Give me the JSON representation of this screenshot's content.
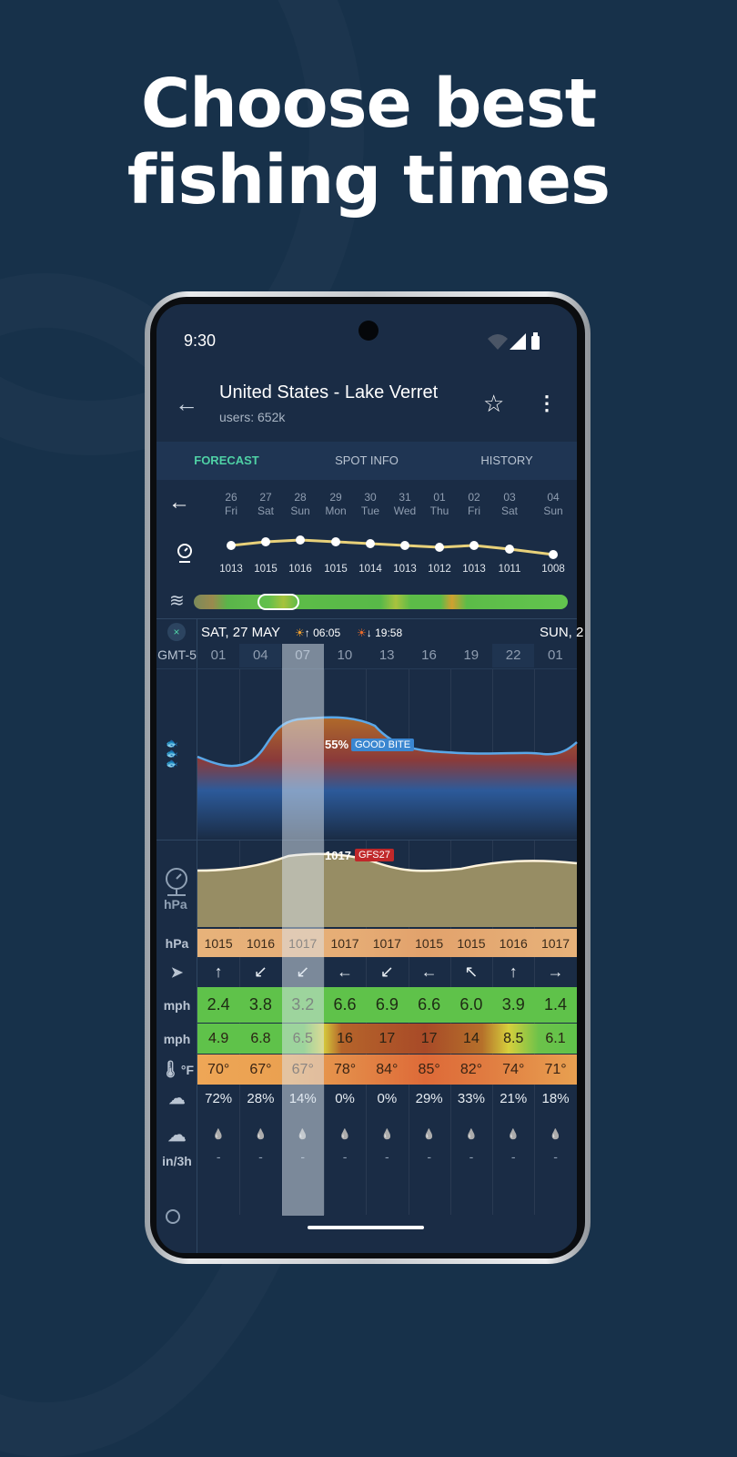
{
  "headline": [
    "Choose best",
    "fishing times"
  ],
  "status_bar": {
    "time": "9:30"
  },
  "header": {
    "title": "United States - Lake Verret",
    "subtitle": "users: 652k"
  },
  "tabs": [
    {
      "label": "FORECAST",
      "active": true
    },
    {
      "label": "SPOT INFO"
    },
    {
      "label": "HISTORY"
    }
  ],
  "colors": {
    "accent": "#4fd1a5",
    "background": "#17314a",
    "screen": "#1a2c45",
    "bite_badge": "#3a86d0",
    "model_badge": "#c0282a"
  },
  "days": [
    {
      "num": "26",
      "name": "Fri",
      "pressure": 1013
    },
    {
      "num": "27",
      "name": "Sat",
      "pressure": 1015
    },
    {
      "num": "28",
      "name": "Sun",
      "pressure": 1016
    },
    {
      "num": "29",
      "name": "Mon",
      "pressure": 1015
    },
    {
      "num": "30",
      "name": "Tue",
      "pressure": 1014
    },
    {
      "num": "31",
      "name": "Wed",
      "pressure": 1013
    },
    {
      "num": "01",
      "name": "Thu",
      "pressure": 1012
    },
    {
      "num": "02",
      "name": "Fri",
      "pressure": 1013
    },
    {
      "num": "03",
      "name": "Sat",
      "pressure": 1011
    },
    {
      "num": "04",
      "name": "Sun",
      "pressure": 1008
    }
  ],
  "day_header": {
    "date": "SAT, 27 MAY",
    "sunrise": "06:05",
    "sunset": "19:58",
    "next_date": "SUN, 2",
    "timezone": "GMT-5"
  },
  "hours": [
    "01",
    "04",
    "07",
    "10",
    "13",
    "16",
    "19",
    "22",
    "01"
  ],
  "selected_hour_index": 2,
  "bite": {
    "value": "55%",
    "label": "GOOD BITE"
  },
  "pressure_chart": {
    "value": "1017",
    "model": "GFS27",
    "unit": "hPa"
  },
  "rows": {
    "pressure": {
      "unit": "hPa",
      "values": [
        "1015",
        "1016",
        "1017",
        "1017",
        "1017",
        "1015",
        "1015",
        "1016",
        "1017"
      ]
    },
    "direction": {
      "arrows": [
        "↑",
        "↙",
        "↙",
        "←",
        "↙",
        "←",
        "↖",
        "↑",
        "→"
      ]
    },
    "wind": {
      "unit": "mph",
      "values": [
        "2.4",
        "3.8",
        "3.2",
        "6.6",
        "6.9",
        "6.6",
        "6.0",
        "3.9",
        "1.4"
      ]
    },
    "gust": {
      "unit": "mph",
      "values": [
        "4.9",
        "6.8",
        "6.5",
        "16",
        "17",
        "17",
        "14",
        "8.5",
        "6.1"
      ]
    },
    "temp": {
      "unit": "°F",
      "values": [
        "70°",
        "67°",
        "67°",
        "78°",
        "84°",
        "85°",
        "82°",
        "74°",
        "71°"
      ]
    },
    "cloud": {
      "values": [
        "72%",
        "28%",
        "14%",
        "0%",
        "0%",
        "29%",
        "33%",
        "21%",
        "18%"
      ]
    },
    "rain": {
      "unit": "in/3h",
      "values": [
        "-",
        "-",
        "-",
        "-",
        "-",
        "-",
        "-",
        "-",
        "-"
      ]
    }
  }
}
